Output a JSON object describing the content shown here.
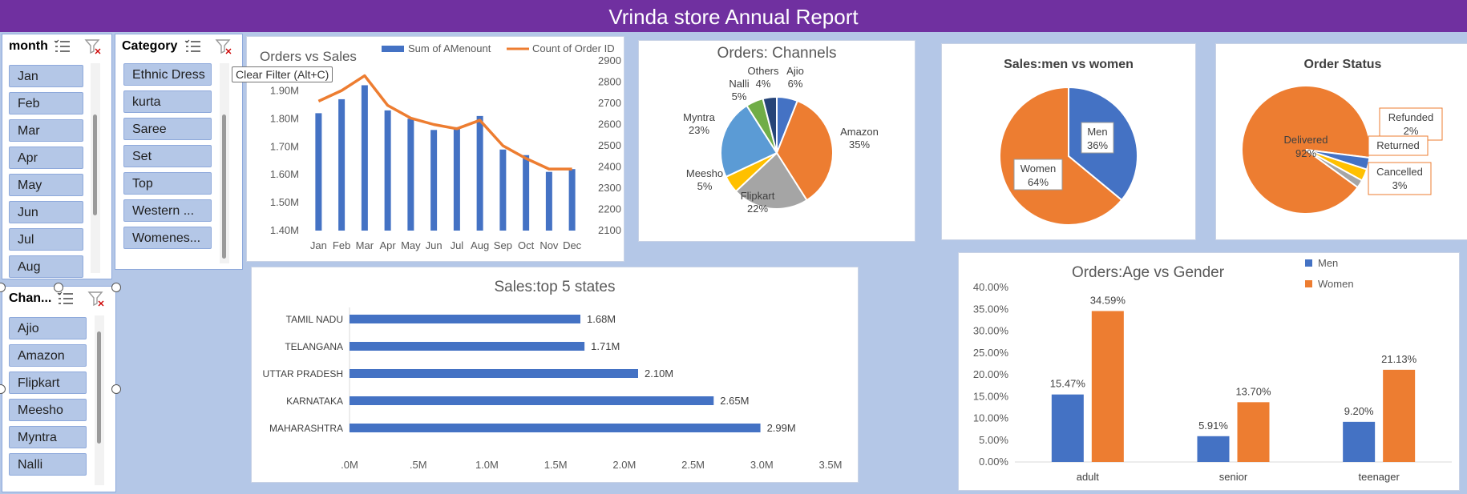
{
  "title": "Vrinda store Annual Report",
  "tooltip": "Clear Filter (Alt+C)",
  "colors": {
    "blue": "#4472c4",
    "orange": "#ed7d31",
    "gray": "#a5a5a5",
    "yellow": "#ffc000",
    "lightblue": "#5b9bd5",
    "green": "#70ad47",
    "navy": "#264478",
    "banner": "#7030a0",
    "bg": "#b4c7e7"
  },
  "slicers": {
    "month": {
      "title": "month",
      "items": [
        "Jan",
        "Feb",
        "Mar",
        "Apr",
        "May",
        "Jun",
        "Jul",
        "Aug"
      ]
    },
    "category": {
      "title": "Category",
      "items": [
        "Ethnic Dress",
        "kurta",
        "Saree",
        "Set",
        "Top",
        "Western ...",
        "Womenes..."
      ]
    },
    "channel": {
      "title": "Chan...",
      "items": [
        "Ajio",
        "Amazon",
        "Flipkart",
        "Meesho",
        "Myntra",
        "Nalli"
      ]
    }
  },
  "chart_data": [
    {
      "id": "orders_vs_sales",
      "type": "bar+line",
      "title": "Orders vs Sales",
      "categories": [
        "Jan",
        "Feb",
        "Mar",
        "Apr",
        "May",
        "Jun",
        "Jul",
        "Aug",
        "Sep",
        "Oct",
        "Nov",
        "Dec"
      ],
      "series": [
        {
          "name": "Sum of AMenount",
          "type": "bar",
          "axis": "left",
          "values": [
            1.82,
            1.87,
            1.92,
            1.83,
            1.8,
            1.76,
            1.77,
            1.81,
            1.69,
            1.67,
            1.61,
            1.62
          ]
        },
        {
          "name": "Count of Order ID",
          "type": "line",
          "axis": "right",
          "values": [
            2710,
            2760,
            2830,
            2690,
            2630,
            2600,
            2580,
            2620,
            2500,
            2440,
            2390,
            2390
          ]
        }
      ],
      "y_left": {
        "ticks": [
          "1.40M",
          "1.50M",
          "1.60M",
          "1.70M",
          "1.80M",
          "1.90M"
        ],
        "lim": [
          1.4,
          1.95
        ]
      },
      "y_right": {
        "ticks": [
          "2100",
          "2200",
          "2300",
          "2400",
          "2500",
          "2600",
          "2700",
          "2800",
          "2900"
        ],
        "lim": [
          2100,
          2900
        ]
      },
      "legend": "top"
    },
    {
      "id": "orders_channels",
      "type": "pie",
      "title": "Orders: Channels",
      "slices": [
        {
          "label": "Ajio",
          "pct": "6%",
          "value": 6
        },
        {
          "label": "Amazon",
          "pct": "35%",
          "value": 35
        },
        {
          "label": "Flipkart",
          "pct": "22%",
          "value": 22
        },
        {
          "label": "Meesho",
          "pct": "5%",
          "value": 5
        },
        {
          "label": "Myntra",
          "pct": "23%",
          "value": 23
        },
        {
          "label": "Nalli",
          "pct": "5%",
          "value": 5
        },
        {
          "label": "Others",
          "pct": "4%",
          "value": 4
        }
      ]
    },
    {
      "id": "sales_men_women",
      "type": "pie",
      "title": "Sales:men vs women",
      "slices": [
        {
          "label": "Men",
          "pct": "36%",
          "value": 36
        },
        {
          "label": "Women",
          "pct": "64%",
          "value": 64
        }
      ]
    },
    {
      "id": "order_status",
      "type": "pie",
      "title": "Order Status",
      "slices": [
        {
          "label": "Delivered",
          "pct": "92%",
          "value": 92
        },
        {
          "label": "Cancelled",
          "pct": "3%",
          "value": 3
        },
        {
          "label": "Returned",
          "pct": "",
          "value": 3
        },
        {
          "label": "Refunded",
          "pct": "2%",
          "value": 2
        }
      ]
    },
    {
      "id": "top5_states",
      "type": "bar",
      "orientation": "horizontal",
      "title": "Sales:top 5 states",
      "categories": [
        "TAMIL NADU",
        "TELANGANA",
        "UTTAR PRADESH",
        "KARNATAKA",
        "MAHARASHTRA"
      ],
      "values": [
        1.68,
        1.71,
        2.1,
        2.65,
        2.99
      ],
      "labels": [
        "1.68M",
        "1.71M",
        "2.10M",
        "2.65M",
        "2.99M"
      ],
      "x_ticks": [
        ".0M",
        ".5M",
        "1.0M",
        "1.5M",
        "2.0M",
        "2.5M",
        "3.0M",
        "3.5M"
      ],
      "xlim": [
        0,
        3.5
      ]
    },
    {
      "id": "age_vs_gender",
      "type": "bar",
      "title": "Orders:Age vs Gender",
      "categories": [
        "adult",
        "senior",
        "teenager"
      ],
      "series": [
        {
          "name": "Men",
          "values": [
            15.47,
            5.91,
            9.2
          ],
          "labels": [
            "15.47%",
            "5.91%",
            "9.20%"
          ]
        },
        {
          "name": "Women",
          "values": [
            34.59,
            13.7,
            21.13
          ],
          "labels": [
            "34.59%",
            "13.70%",
            "21.13%"
          ]
        }
      ],
      "y_ticks": [
        "0.00%",
        "5.00%",
        "10.00%",
        "15.00%",
        "20.00%",
        "25.00%",
        "30.00%",
        "35.00%",
        "40.00%"
      ],
      "ylim": [
        0,
        40
      ],
      "legend": "top-right"
    }
  ]
}
